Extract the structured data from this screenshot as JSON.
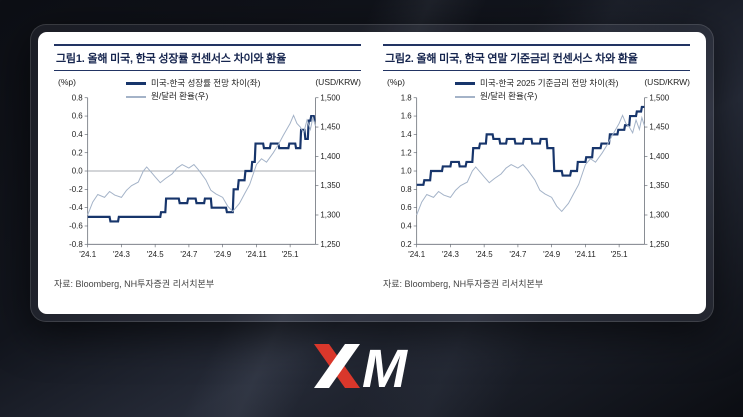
{
  "chart_data": [
    {
      "type": "line",
      "title": "그림1. 올해 미국, 한국 성장률 컨센서스 차이와 환율",
      "source": "자료: Bloomberg, NH투자증권 리서치본부",
      "grid": false,
      "legend_position": "top-inside",
      "zero_line": 0.0,
      "left_axis": {
        "label": "(%p)",
        "min": -0.8,
        "max": 0.8,
        "format": "decimal1",
        "ticks": [
          0.8,
          0.6,
          0.4,
          0.2,
          0.0,
          -0.2,
          -0.4,
          -0.6,
          -0.8
        ]
      },
      "right_axis": {
        "label": "(USD/KRW)",
        "min": 1250,
        "max": 1500,
        "format": "comma",
        "ticks": [
          1500,
          1450,
          1400,
          1350,
          1300,
          1250
        ]
      },
      "x_axis": {
        "min": 0,
        "max": 13.5,
        "tick_positions": [
          0,
          2,
          4,
          6,
          8,
          10,
          12
        ],
        "tick_labels": [
          "'24.1",
          "'24.3",
          "'24.5",
          "'24.7",
          "'24.9",
          "'24.11",
          "'25.1"
        ]
      },
      "series": [
        {
          "name": "미국-한국 성장률 전망 차이(좌)",
          "axis": "left",
          "color": "#17356b",
          "width": 2.2,
          "points": [
            [
              0,
              -0.5
            ],
            [
              1.3,
              -0.5
            ],
            [
              1.35,
              -0.55
            ],
            [
              1.8,
              -0.55
            ],
            [
              1.85,
              -0.5
            ],
            [
              4.3,
              -0.5
            ],
            [
              4.35,
              -0.45
            ],
            [
              4.6,
              -0.45
            ],
            [
              4.65,
              -0.3
            ],
            [
              5.4,
              -0.3
            ],
            [
              5.45,
              -0.35
            ],
            [
              5.9,
              -0.35
            ],
            [
              5.95,
              -0.3
            ],
            [
              6.4,
              -0.3
            ],
            [
              6.45,
              -0.35
            ],
            [
              6.9,
              -0.35
            ],
            [
              6.95,
              -0.3
            ],
            [
              7.3,
              -0.3
            ],
            [
              7.35,
              -0.4
            ],
            [
              8.2,
              -0.4
            ],
            [
              8.25,
              -0.45
            ],
            [
              8.6,
              -0.45
            ],
            [
              8.65,
              -0.2
            ],
            [
              8.9,
              -0.2
            ],
            [
              8.95,
              -0.1
            ],
            [
              9.3,
              -0.1
            ],
            [
              9.35,
              0
            ],
            [
              9.7,
              0
            ],
            [
              9.75,
              0.1
            ],
            [
              9.9,
              0.1
            ],
            [
              9.95,
              0.3
            ],
            [
              10.4,
              0.3
            ],
            [
              10.45,
              0.25
            ],
            [
              10.8,
              0.25
            ],
            [
              10.85,
              0.3
            ],
            [
              11.3,
              0.3
            ],
            [
              11.35,
              0.25
            ],
            [
              11.9,
              0.25
            ],
            [
              11.95,
              0.3
            ],
            [
              12.3,
              0.3
            ],
            [
              12.35,
              0.25
            ],
            [
              12.6,
              0.25
            ],
            [
              12.65,
              0.45
            ],
            [
              12.85,
              0.45
            ],
            [
              12.9,
              0.35
            ],
            [
              13.05,
              0.35
            ],
            [
              13.1,
              0.55
            ],
            [
              13.2,
              0.55
            ],
            [
              13.25,
              0.6
            ],
            [
              13.4,
              0.6
            ],
            [
              13.45,
              0.55
            ],
            [
              13.5,
              0.55
            ]
          ]
        },
        {
          "name": "원/달러 환율(우)",
          "axis": "right",
          "color": "#a4b3c8",
          "width": 1,
          "points": [
            [
              0,
              1300
            ],
            [
              0.3,
              1322
            ],
            [
              0.6,
              1335
            ],
            [
              1,
              1330
            ],
            [
              1.3,
              1340
            ],
            [
              1.6,
              1334
            ],
            [
              2,
              1330
            ],
            [
              2.3,
              1342
            ],
            [
              2.6,
              1350
            ],
            [
              3,
              1356
            ],
            [
              3.3,
              1375
            ],
            [
              3.5,
              1382
            ],
            [
              3.8,
              1372
            ],
            [
              4,
              1365
            ],
            [
              4.3,
              1355
            ],
            [
              4.6,
              1362
            ],
            [
              5,
              1370
            ],
            [
              5.3,
              1380
            ],
            [
              5.6,
              1386
            ],
            [
              6,
              1380
            ],
            [
              6.3,
              1386
            ],
            [
              6.6,
              1376
            ],
            [
              7,
              1360
            ],
            [
              7.3,
              1342
            ],
            [
              7.6,
              1336
            ],
            [
              8,
              1330
            ],
            [
              8.3,
              1315
            ],
            [
              8.6,
              1306
            ],
            [
              9,
              1320
            ],
            [
              9.3,
              1336
            ],
            [
              9.6,
              1352
            ],
            [
              10,
              1386
            ],
            [
              10.3,
              1396
            ],
            [
              10.6,
              1390
            ],
            [
              11,
              1406
            ],
            [
              11.3,
              1420
            ],
            [
              11.6,
              1436
            ],
            [
              12,
              1456
            ],
            [
              12.2,
              1470
            ],
            [
              12.4,
              1456
            ],
            [
              12.6,
              1450
            ],
            [
              12.8,
              1440
            ],
            [
              13,
              1462
            ],
            [
              13.2,
              1446
            ],
            [
              13.35,
              1466
            ],
            [
              13.5,
              1452
            ]
          ]
        }
      ]
    },
    {
      "type": "line",
      "title": "그림2. 올해 미국, 한국 연말 기준금리 컨센서스 차와 환율",
      "source": "자료: Bloomberg, NH투자증권 리서치본부",
      "grid": false,
      "legend_position": "top-inside",
      "zero_line": null,
      "left_axis": {
        "label": "(%p)",
        "min": 0.2,
        "max": 1.8,
        "format": "decimal1",
        "ticks": [
          1.8,
          1.6,
          1.4,
          1.2,
          1.0,
          0.8,
          0.6,
          0.4,
          0.2
        ]
      },
      "right_axis": {
        "label": "(USD/KRW)",
        "min": 1250,
        "max": 1500,
        "format": "comma",
        "ticks": [
          1500,
          1450,
          1400,
          1350,
          1300,
          1250
        ]
      },
      "x_axis": {
        "min": 0,
        "max": 13.5,
        "tick_positions": [
          0,
          2,
          4,
          6,
          8,
          10,
          12
        ],
        "tick_labels": [
          "'24.1",
          "'24.3",
          "'24.5",
          "'24.7",
          "'24.9",
          "'24.11",
          "'25.1"
        ]
      },
      "series": [
        {
          "name": "미국-한국 2025 기준금리 전망 차이(좌)",
          "axis": "left",
          "color": "#17356b",
          "width": 2.2,
          "points": [
            [
              0,
              0.85
            ],
            [
              0.4,
              0.85
            ],
            [
              0.45,
              0.9
            ],
            [
              0.8,
              0.9
            ],
            [
              0.85,
              1
            ],
            [
              1.5,
              1
            ],
            [
              1.55,
              1.05
            ],
            [
              2,
              1.05
            ],
            [
              2.05,
              1.1
            ],
            [
              2.5,
              1.1
            ],
            [
              2.55,
              1.05
            ],
            [
              2.9,
              1.05
            ],
            [
              2.95,
              1.1
            ],
            [
              3.3,
              1.1
            ],
            [
              3.35,
              1.25
            ],
            [
              3.7,
              1.25
            ],
            [
              3.75,
              1.3
            ],
            [
              4.1,
              1.3
            ],
            [
              4.15,
              1.4
            ],
            [
              4.5,
              1.4
            ],
            [
              4.55,
              1.35
            ],
            [
              4.9,
              1.35
            ],
            [
              4.95,
              1.3
            ],
            [
              5.3,
              1.3
            ],
            [
              5.35,
              1.35
            ],
            [
              5.8,
              1.35
            ],
            [
              5.85,
              1.3
            ],
            [
              6.3,
              1.3
            ],
            [
              6.35,
              1.35
            ],
            [
              6.8,
              1.35
            ],
            [
              6.85,
              1.3
            ],
            [
              7.3,
              1.3
            ],
            [
              7.35,
              1.35
            ],
            [
              7.7,
              1.35
            ],
            [
              7.75,
              1.25
            ],
            [
              8.1,
              1.25
            ],
            [
              8.15,
              1
            ],
            [
              8.6,
              1
            ],
            [
              8.65,
              0.95
            ],
            [
              9.1,
              0.95
            ],
            [
              9.15,
              1
            ],
            [
              9.5,
              1
            ],
            [
              9.55,
              1.1
            ],
            [
              10,
              1.1
            ],
            [
              10.05,
              1.15
            ],
            [
              10.4,
              1.15
            ],
            [
              10.45,
              1.25
            ],
            [
              10.9,
              1.25
            ],
            [
              10.95,
              1.3
            ],
            [
              11.4,
              1.3
            ],
            [
              11.45,
              1.4
            ],
            [
              11.9,
              1.4
            ],
            [
              11.95,
              1.45
            ],
            [
              12.3,
              1.45
            ],
            [
              12.35,
              1.5
            ],
            [
              12.6,
              1.5
            ],
            [
              12.65,
              1.6
            ],
            [
              13,
              1.6
            ],
            [
              13.05,
              1.65
            ],
            [
              13.3,
              1.65
            ],
            [
              13.35,
              1.7
            ],
            [
              13.5,
              1.7
            ]
          ]
        },
        {
          "name": "원/달러 환율(우)",
          "axis": "right",
          "color": "#a4b3c8",
          "width": 1,
          "points": [
            [
              0,
              1300
            ],
            [
              0.3,
              1322
            ],
            [
              0.6,
              1335
            ],
            [
              1,
              1330
            ],
            [
              1.3,
              1340
            ],
            [
              1.6,
              1334
            ],
            [
              2,
              1330
            ],
            [
              2.3,
              1342
            ],
            [
              2.6,
              1350
            ],
            [
              3,
              1356
            ],
            [
              3.3,
              1375
            ],
            [
              3.5,
              1382
            ],
            [
              3.8,
              1372
            ],
            [
              4,
              1365
            ],
            [
              4.3,
              1355
            ],
            [
              4.6,
              1362
            ],
            [
              5,
              1370
            ],
            [
              5.3,
              1380
            ],
            [
              5.6,
              1386
            ],
            [
              6,
              1380
            ],
            [
              6.3,
              1386
            ],
            [
              6.6,
              1376
            ],
            [
              7,
              1360
            ],
            [
              7.3,
              1342
            ],
            [
              7.6,
              1336
            ],
            [
              8,
              1330
            ],
            [
              8.3,
              1315
            ],
            [
              8.6,
              1306
            ],
            [
              9,
              1320
            ],
            [
              9.3,
              1336
            ],
            [
              9.6,
              1352
            ],
            [
              10,
              1386
            ],
            [
              10.3,
              1396
            ],
            [
              10.6,
              1390
            ],
            [
              11,
              1406
            ],
            [
              11.3,
              1420
            ],
            [
              11.6,
              1436
            ],
            [
              12,
              1456
            ],
            [
              12.2,
              1470
            ],
            [
              12.4,
              1456
            ],
            [
              12.6,
              1450
            ],
            [
              12.8,
              1440
            ],
            [
              13,
              1462
            ],
            [
              13.2,
              1446
            ],
            [
              13.35,
              1466
            ],
            [
              13.5,
              1452
            ]
          ]
        }
      ]
    }
  ],
  "logo": {
    "label": "XM",
    "m_letter": "M",
    "accent_color": "#d9372b"
  }
}
